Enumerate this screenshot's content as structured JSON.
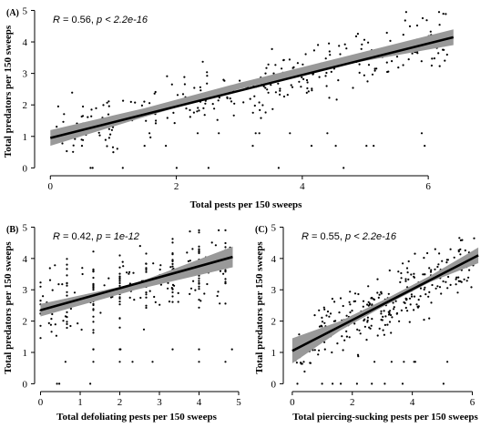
{
  "chart_data": [
    {
      "id": "A",
      "type": "scatter",
      "panel_label": "(A)",
      "stat_R": "0.56",
      "stat_p": "p < 2.2e-16",
      "xlabel": "Total pests per 150 sweeps",
      "ylabel": "Total predators per 150 sweeps",
      "xlim": [
        -0.25,
        6.75
      ],
      "ylim": [
        -0.25,
        5.1
      ],
      "xticks": [
        0,
        2,
        4,
        6
      ],
      "yticks": [
        0,
        1,
        2,
        3,
        4,
        5
      ],
      "fit_line": {
        "x": [
          0,
          6.4
        ],
        "y": [
          0.95,
          4.15
        ]
      },
      "confidence_band": {
        "x": [
          0,
          1.5,
          3,
          4.5,
          6.4
        ],
        "lower": [
          0.7,
          1.62,
          2.5,
          3.22,
          3.9
        ],
        "upper": [
          1.2,
          1.9,
          2.7,
          3.45,
          4.4
        ]
      },
      "points": {
        "x_min": 0.1,
        "x_max": 6.3,
        "y_min": 0,
        "y_max": 4.95,
        "n": 320,
        "seed": 11,
        "slope": 0.5,
        "intercept": 0.95,
        "noise": 0.75
      },
      "grid": false,
      "legend": "none"
    },
    {
      "id": "B",
      "type": "scatter",
      "panel_label": "(B)",
      "stat_R": "0.42",
      "stat_p": "p = 1e-12",
      "xlabel": "Total defoliating pests per 150 sweeps",
      "ylabel": "Total predators per 150 sweeps",
      "xlim": [
        -0.15,
        5.0
      ],
      "ylim": [
        -0.25,
        5.1
      ],
      "xticks": [
        0,
        1,
        2,
        3,
        4,
        5
      ],
      "yticks": [
        0,
        1,
        2,
        3,
        4,
        5
      ],
      "fit_line": {
        "x": [
          0,
          4.85
        ],
        "y": [
          2.35,
          4.05
        ]
      },
      "confidence_band": {
        "x": [
          0,
          2.4,
          4.85
        ],
        "lower": [
          2.15,
          3.0,
          3.72
        ],
        "upper": [
          2.55,
          3.2,
          4.38
        ]
      },
      "points": {
        "x_min": 0,
        "x_max": 4.9,
        "y_min": 0,
        "y_max": 4.9,
        "n": 260,
        "seed": 23,
        "slope": 0.35,
        "intercept": 2.35,
        "noise": 0.95
      },
      "grid": false,
      "legend": "none"
    },
    {
      "id": "C",
      "type": "scatter",
      "panel_label": "(C)",
      "stat_R": "0.55",
      "stat_p": "p < 2.2e-16",
      "xlabel": "Total piercing-sucking pests per 150 sweeps",
      "ylabel": "Total predators per 150 sweeps",
      "xlim": [
        -0.3,
        6.5
      ],
      "ylim": [
        -0.25,
        5.1
      ],
      "xticks": [
        0,
        2,
        4,
        6
      ],
      "yticks": [
        0,
        1,
        2,
        3,
        4,
        5
      ],
      "fit_line": {
        "x": [
          0,
          6.2
        ],
        "y": [
          1.05,
          4.1
        ]
      },
      "confidence_band": {
        "x": [
          0,
          1.6,
          3.1,
          4.6,
          6.2
        ],
        "lower": [
          0.65,
          1.7,
          2.5,
          3.25,
          3.85
        ],
        "upper": [
          1.45,
          2.0,
          2.7,
          3.45,
          4.35
        ]
      },
      "points": {
        "x_min": 0.1,
        "x_max": 6.15,
        "y_min": 0,
        "y_max": 4.95,
        "n": 320,
        "seed": 37,
        "slope": 0.49,
        "intercept": 1.05,
        "noise": 0.75
      },
      "grid": false,
      "legend": "none"
    }
  ]
}
